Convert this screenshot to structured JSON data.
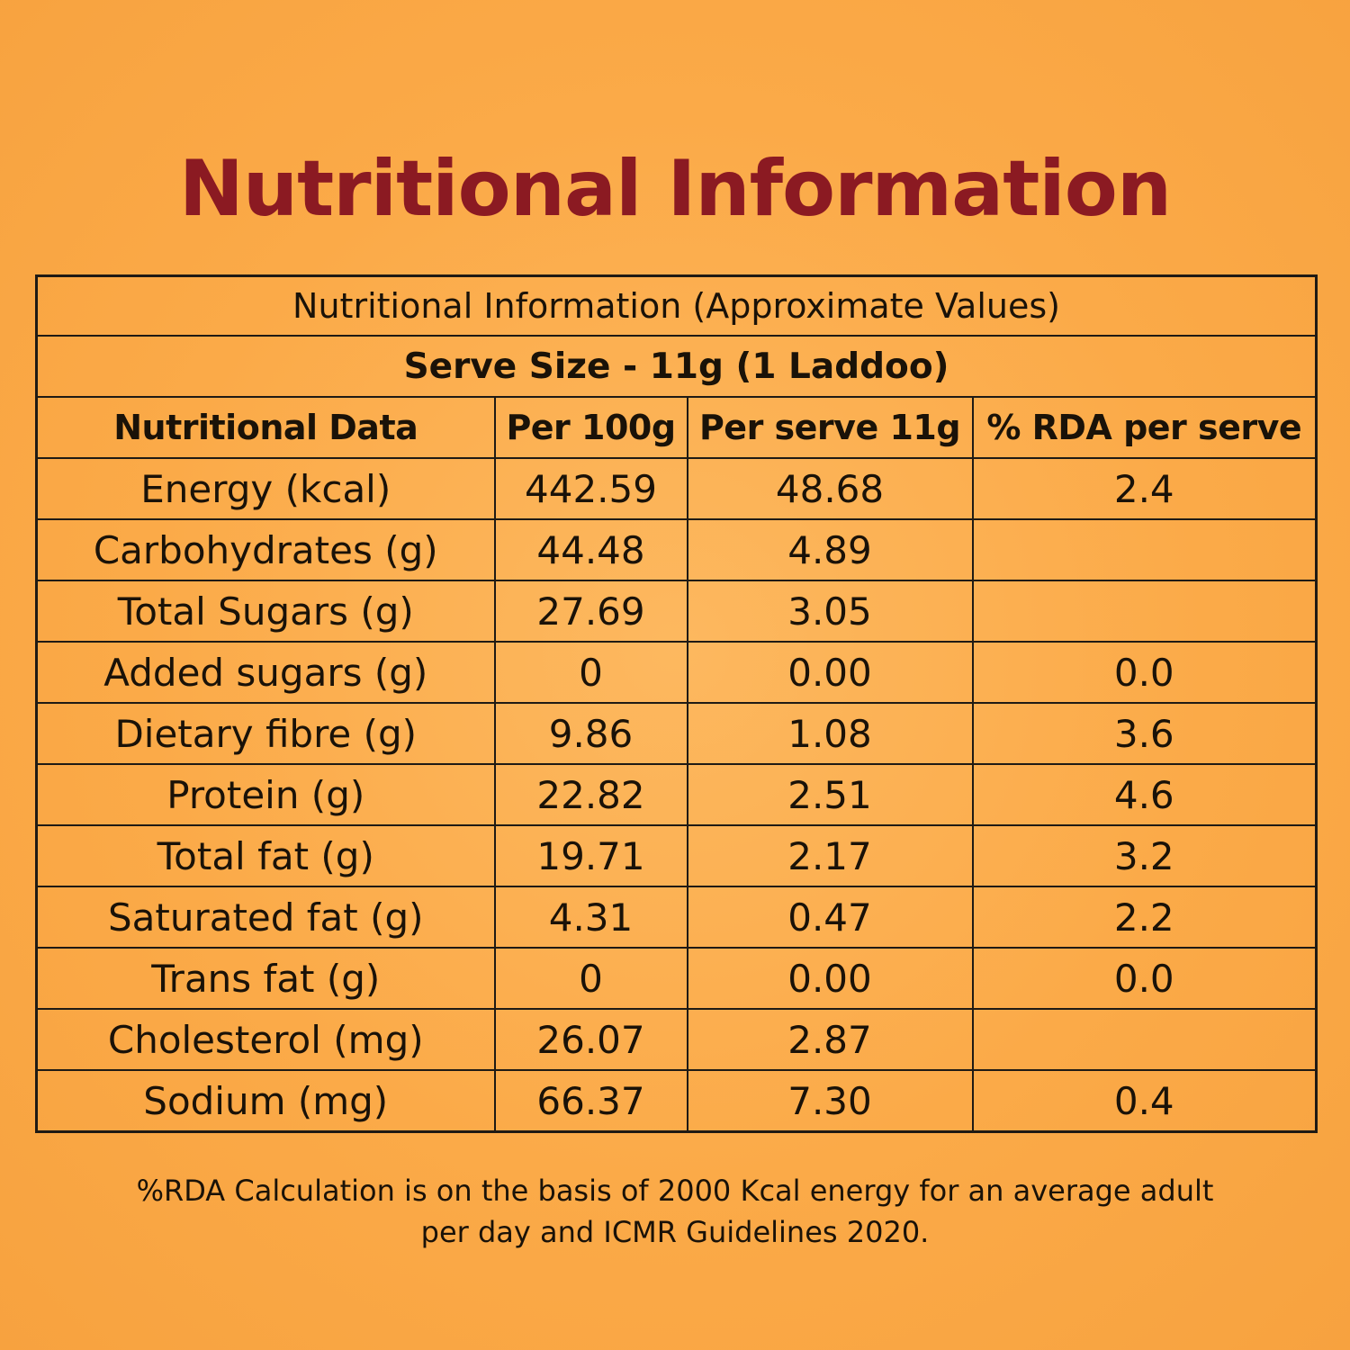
{
  "title": "Nutritional Information",
  "table": {
    "caption": "Nutritional Information (Approximate Values)",
    "serve_size": "Serve Size - 11g (1 Laddoo)",
    "headers": [
      "Nutritional Data",
      "Per 100g",
      "Per serve 11g",
      "% RDA per serve"
    ],
    "rows": [
      [
        "Energy (kcal)",
        "442.59",
        "48.68",
        "2.4"
      ],
      [
        "Carbohydrates (g)",
        "44.48",
        "4.89",
        ""
      ],
      [
        "Total Sugars (g)",
        "27.69",
        "3.05",
        ""
      ],
      [
        "Added sugars (g)",
        "0",
        "0.00",
        "0.0"
      ],
      [
        "Dietary fibre (g)",
        "9.86",
        "1.08",
        "3.6"
      ],
      [
        "Protein (g)",
        "22.82",
        "2.51",
        "4.6"
      ],
      [
        "Total fat (g)",
        "19.71",
        "2.17",
        "3.2"
      ],
      [
        "Saturated fat (g)",
        "4.31",
        "0.47",
        "2.2"
      ],
      [
        "Trans fat (g)",
        "0",
        "0.00",
        "0.0"
      ],
      [
        "Cholesterol (mg)",
        "26.07",
        "2.87",
        ""
      ],
      [
        "Sodium (mg)",
        "66.37",
        "7.30",
        "0.4"
      ]
    ]
  },
  "footnote": {
    "line1": "%RDA Calculation is on the basis of 2000 Kcal energy for an average adult",
    "line2": "per day and ICMR Guidelines 2020."
  },
  "colors": {
    "background": "#fbaa48",
    "title": "#8b1a22",
    "border": "#1f1a14"
  }
}
